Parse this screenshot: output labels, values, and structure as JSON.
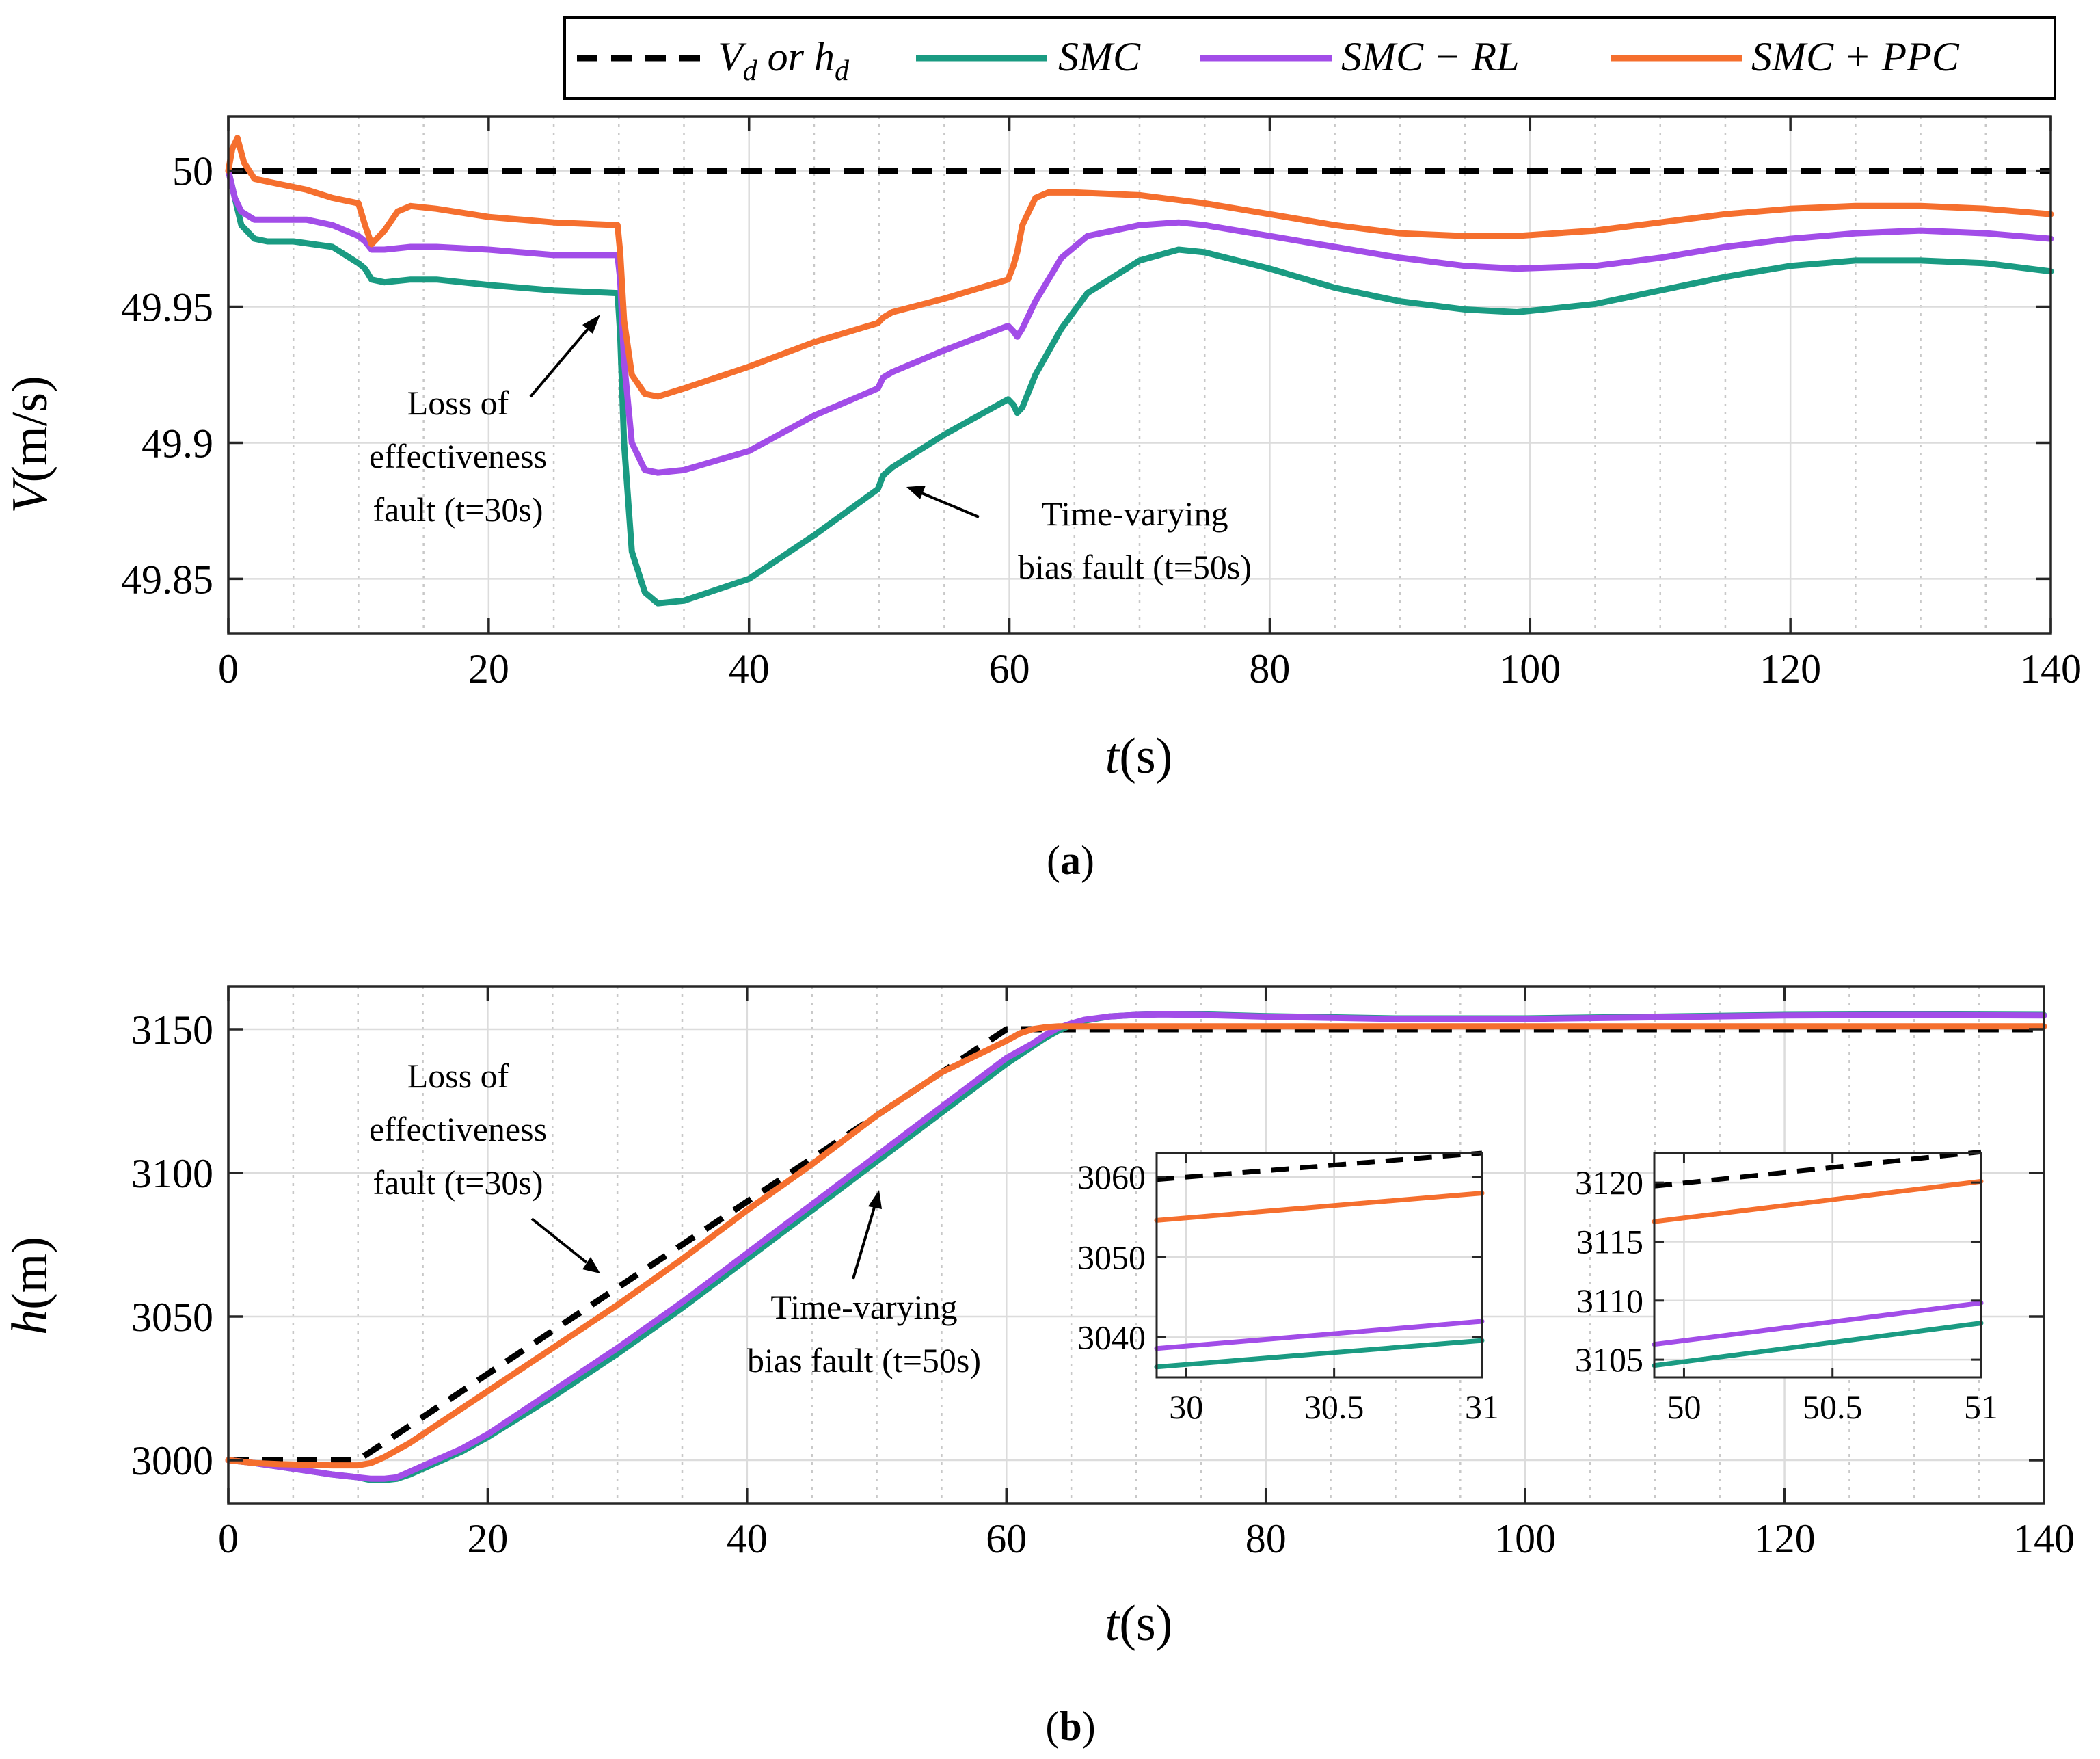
{
  "legend": {
    "entries": [
      {
        "label": "V_d or h_d",
        "label_main": "V",
        "label_sub1": "d",
        "label_mid": " or ",
        "label_h": "h",
        "label_sub2": "d",
        "color": "#000000",
        "dash": true
      },
      {
        "label": "SMC",
        "color": "#1a9b82"
      },
      {
        "label": "SMC − RL",
        "color": "#a24de8"
      },
      {
        "label": "SMC + PPC",
        "color": "#f56f2e"
      }
    ]
  },
  "panels": {
    "a": {
      "label_open": "(",
      "label_bold": "a",
      "label_close": ")",
      "ylabel_italic": "V",
      "ylabel_rest": "(m/s)",
      "xlabel_italic": "t",
      "xlabel_rest": "(s)",
      "annotations": [
        {
          "lines": [
            "Loss of",
            "effectiveness",
            "fault (t=30s)"
          ]
        },
        {
          "lines": [
            "Time-varying",
            "bias fault (t=50s)"
          ]
        }
      ]
    },
    "b": {
      "label_open": "(",
      "label_bold": "b",
      "label_close": ")",
      "ylabel_italic": "h",
      "ylabel_rest": "(m)",
      "xlabel_italic": "t",
      "xlabel_rest": "(s)",
      "annotations": [
        {
          "lines": [
            "Loss of",
            "effectiveness",
            "fault (t=30s)"
          ]
        },
        {
          "lines": [
            "Time-varying",
            "bias fault (t=50s)"
          ]
        }
      ]
    }
  },
  "chart_data": [
    {
      "type": "line",
      "id": "velocity",
      "xlabel": "t(s)",
      "ylabel": "V(m/s)",
      "xlim": [
        0,
        140
      ],
      "ylim": [
        49.83,
        50.02
      ],
      "xticks": [
        0,
        20,
        40,
        60,
        80,
        100,
        120,
        140
      ],
      "xtick_labels": [
        "0",
        "20",
        "40",
        "60",
        "80",
        "100",
        "120",
        "140"
      ],
      "yticks": [
        49.85,
        49.9,
        49.95,
        50
      ],
      "ytick_labels": [
        "49.85",
        "49.9",
        "49.95",
        "50"
      ],
      "minor_grid_x_step": 5,
      "grid": true,
      "series": [
        {
          "name": "V_d or h_d",
          "color": "#000000",
          "dash": true,
          "x": [
            0,
            140
          ],
          "y": [
            50.0,
            50.0
          ]
        },
        {
          "name": "SMC",
          "color": "#1a9b82",
          "x": [
            0,
            0.5,
            1,
            2,
            3,
            5,
            8,
            10,
            10.5,
            11,
            12,
            14,
            16,
            20,
            25,
            29.9,
            30.1,
            30.4,
            31,
            32,
            33,
            35,
            40,
            45,
            49.9,
            50.3,
            51,
            55,
            59.9,
            60.3,
            60.6,
            61,
            62,
            64,
            66,
            70,
            73,
            75,
            80,
            85,
            90,
            95,
            99,
            105,
            110,
            115,
            120,
            125,
            130,
            135,
            140
          ],
          "y": [
            50.0,
            49.99,
            49.98,
            49.975,
            49.974,
            49.974,
            49.972,
            49.966,
            49.964,
            49.96,
            49.959,
            49.96,
            49.96,
            49.958,
            49.956,
            49.955,
            49.94,
            49.9,
            49.86,
            49.845,
            49.841,
            49.842,
            49.85,
            49.866,
            49.883,
            49.888,
            49.891,
            49.903,
            49.916,
            49.914,
            49.911,
            49.913,
            49.925,
            49.942,
            49.955,
            49.967,
            49.971,
            49.97,
            49.964,
            49.957,
            49.952,
            49.949,
            49.948,
            49.951,
            49.956,
            49.961,
            49.965,
            49.967,
            49.967,
            49.966,
            49.963
          ]
        },
        {
          "name": "SMC − RL",
          "color": "#a24de8",
          "x": [
            0,
            0.5,
            1,
            2,
            4,
            6,
            8,
            10,
            10.5,
            11,
            12,
            14,
            16,
            20,
            25,
            29.9,
            30.1,
            30.4,
            31,
            32,
            33,
            35,
            40,
            45,
            49.9,
            50.3,
            51,
            55,
            59.9,
            60.3,
            60.6,
            61,
            62,
            64,
            66,
            70,
            73,
            75,
            80,
            85,
            90,
            95,
            99,
            105,
            110,
            115,
            120,
            125,
            130,
            135,
            140
          ],
          "y": [
            50.0,
            49.99,
            49.985,
            49.982,
            49.982,
            49.982,
            49.98,
            49.976,
            49.974,
            49.971,
            49.971,
            49.972,
            49.972,
            49.971,
            49.969,
            49.969,
            49.96,
            49.93,
            49.9,
            49.89,
            49.889,
            49.89,
            49.897,
            49.91,
            49.92,
            49.924,
            49.926,
            49.934,
            49.943,
            49.941,
            49.939,
            49.942,
            49.952,
            49.968,
            49.976,
            49.98,
            49.981,
            49.98,
            49.976,
            49.972,
            49.968,
            49.965,
            49.964,
            49.965,
            49.968,
            49.972,
            49.975,
            49.977,
            49.978,
            49.977,
            49.975
          ]
        },
        {
          "name": "SMC + PPC",
          "color": "#f56f2e",
          "x": [
            0,
            0.3,
            0.7,
            1.2,
            2,
            4,
            6,
            8,
            10,
            10.5,
            11,
            12,
            13,
            14,
            16,
            20,
            25,
            29.9,
            30.1,
            30.4,
            31,
            32,
            33,
            35,
            40,
            45,
            49.9,
            50.3,
            51,
            55,
            59.9,
            60.3,
            60.6,
            61,
            62,
            63,
            65,
            70,
            75,
            80,
            85,
            90,
            95,
            99,
            105,
            110,
            115,
            120,
            125,
            130,
            135,
            140
          ],
          "y": [
            50.0,
            50.008,
            50.012,
            50.003,
            49.997,
            49.995,
            49.993,
            49.99,
            49.988,
            49.98,
            49.973,
            49.978,
            49.985,
            49.987,
            49.986,
            49.983,
            49.981,
            49.98,
            49.97,
            49.945,
            49.925,
            49.918,
            49.917,
            49.92,
            49.928,
            49.937,
            49.944,
            49.946,
            49.948,
            49.953,
            49.96,
            49.965,
            49.97,
            49.98,
            49.99,
            49.992,
            49.992,
            49.991,
            49.988,
            49.984,
            49.98,
            49.977,
            49.976,
            49.976,
            49.978,
            49.981,
            49.984,
            49.986,
            49.987,
            49.987,
            49.986,
            49.984
          ]
        }
      ]
    },
    {
      "type": "line",
      "id": "altitude",
      "xlabel": "t(s)",
      "ylabel": "h(m)",
      "xlim": [
        0,
        140
      ],
      "ylim": [
        2985,
        3165
      ],
      "xticks": [
        0,
        20,
        40,
        60,
        80,
        100,
        120,
        140
      ],
      "xtick_labels": [
        "0",
        "20",
        "40",
        "60",
        "80",
        "100",
        "120",
        "140"
      ],
      "yticks": [
        3000,
        3050,
        3100,
        3150
      ],
      "ytick_labels": [
        "3000",
        "3050",
        "3100",
        "3150"
      ],
      "minor_grid_x_step": 5,
      "grid": true,
      "series": [
        {
          "name": "V_d or h_d",
          "color": "#000000",
          "dash": true,
          "x": [
            0,
            10,
            60,
            140
          ],
          "y": [
            3000,
            3000,
            3150,
            3150
          ]
        },
        {
          "name": "SMC",
          "color": "#1a9b82",
          "x": [
            0,
            2,
            5,
            8,
            10,
            11,
            12,
            13,
            14,
            16,
            18,
            20,
            25,
            30,
            35,
            40,
            45,
            50,
            55,
            60,
            62,
            63,
            64,
            65,
            66,
            68,
            70,
            72,
            75,
            80,
            90,
            100,
            110,
            120,
            130,
            140
          ],
          "y": [
            3000,
            2999,
            2997,
            2995,
            2994,
            2993,
            2993,
            2993.5,
            2995,
            2999,
            3003,
            3008,
            3022,
            3037,
            3053,
            3070,
            3087,
            3104,
            3121,
            3138,
            3144,
            3147,
            3149.5,
            3151.5,
            3153,
            3154.5,
            3155,
            3155.3,
            3155.2,
            3154.6,
            3153.8,
            3153.8,
            3154.4,
            3155,
            3155.2,
            3155
          ]
        },
        {
          "name": "SMC − RL",
          "color": "#a24de8",
          "x": [
            0,
            2,
            5,
            8,
            10,
            11,
            12,
            13,
            14,
            16,
            18,
            20,
            25,
            30,
            35,
            40,
            45,
            50,
            55,
            60,
            62,
            63,
            64,
            65,
            66,
            68,
            70,
            72,
            75,
            80,
            90,
            100,
            110,
            120,
            130,
            140
          ],
          "y": [
            3000,
            2999,
            2997,
            2995,
            2994,
            2993.5,
            2993.5,
            2994,
            2996,
            3000,
            3004,
            3009,
            3024,
            3039,
            3055,
            3072,
            3089,
            3106,
            3123,
            3140,
            3145,
            3148,
            3150.5,
            3152,
            3153.3,
            3154.5,
            3155,
            3155.2,
            3155,
            3154.4,
            3153.6,
            3153.6,
            3154.2,
            3154.8,
            3155,
            3154.8
          ]
        },
        {
          "name": "SMC + PPC",
          "color": "#f56f2e",
          "x": [
            0,
            2,
            4,
            6,
            8,
            10,
            11,
            12,
            14,
            16,
            20,
            25,
            30,
            35,
            40,
            45,
            50,
            55,
            60,
            61,
            62,
            63,
            64,
            65,
            70,
            80,
            90,
            100,
            110,
            120,
            130,
            140
          ],
          "y": [
            3000,
            2999,
            2998.6,
            2998.4,
            2998.2,
            2998.2,
            2999,
            3001,
            3006,
            3012,
            3024,
            3039,
            3054,
            3070,
            3087,
            3103,
            3120,
            3135,
            3146,
            3148.5,
            3150,
            3150.7,
            3151,
            3151,
            3151,
            3151,
            3151,
            3151,
            3151,
            3151,
            3151,
            3151
          ]
        }
      ]
    },
    {
      "type": "line",
      "id": "altitude-inset-30s",
      "xlim": [
        29.9,
        31
      ],
      "ylim": [
        3035,
        3063
      ],
      "xticks": [
        30,
        30.5,
        31
      ],
      "xtick_labels": [
        "30",
        "30.5",
        "31"
      ],
      "yticks": [
        3040,
        3050,
        3060
      ],
      "ytick_labels": [
        "3040",
        "3050",
        "3060"
      ],
      "grid": true,
      "series": [
        {
          "name": "V_d or h_d",
          "color": "#000000",
          "dash": true,
          "x": [
            29.9,
            31
          ],
          "y": [
            3059.7,
            3063
          ]
        },
        {
          "name": "SMC + PPC",
          "color": "#f56f2e",
          "x": [
            29.9,
            31
          ],
          "y": [
            3054.6,
            3058
          ]
        },
        {
          "name": "SMC − RL",
          "color": "#a24de8",
          "x": [
            29.9,
            31
          ],
          "y": [
            3038.6,
            3042
          ]
        },
        {
          "name": "SMC",
          "color": "#1a9b82",
          "x": [
            29.9,
            31
          ],
          "y": [
            3036.3,
            3039.6
          ]
        }
      ]
    },
    {
      "type": "line",
      "id": "altitude-inset-50s",
      "xlim": [
        49.9,
        51
      ],
      "ylim": [
        3103.5,
        3122.5
      ],
      "xticks": [
        50,
        50.5,
        51
      ],
      "xtick_labels": [
        "50",
        "50.5",
        "51"
      ],
      "yticks": [
        3105,
        3110,
        3115,
        3120
      ],
      "ytick_labels": [
        "3105",
        "3110",
        "3115",
        "3120"
      ],
      "grid": true,
      "series": [
        {
          "name": "V_d or h_d",
          "color": "#000000",
          "dash": true,
          "x": [
            49.9,
            51
          ],
          "y": [
            3119.7,
            3122.6
          ]
        },
        {
          "name": "SMC + PPC",
          "color": "#f56f2e",
          "x": [
            49.9,
            51
          ],
          "y": [
            3116.7,
            3120.1
          ]
        },
        {
          "name": "SMC − RL",
          "color": "#a24de8",
          "x": [
            49.9,
            51
          ],
          "y": [
            3106.3,
            3109.8
          ]
        },
        {
          "name": "SMC",
          "color": "#1a9b82",
          "x": [
            49.9,
            51
          ],
          "y": [
            3104.5,
            3108.1
          ]
        }
      ]
    }
  ]
}
